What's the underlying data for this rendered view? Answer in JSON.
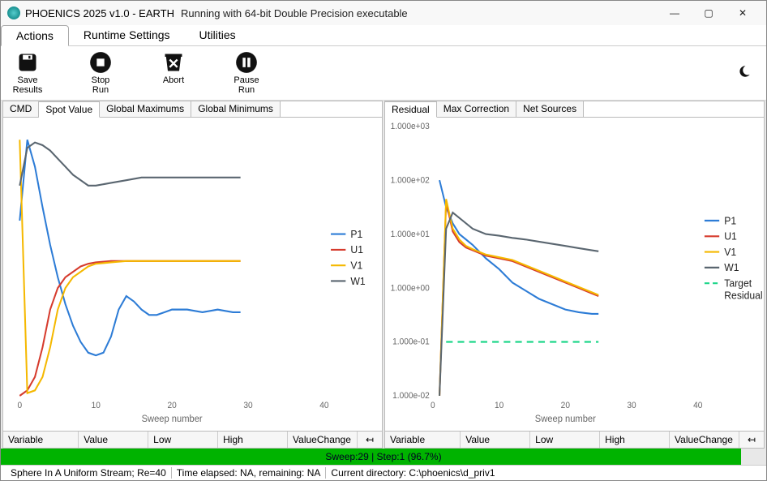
{
  "window": {
    "title": "PHOENICS 2025 v1.0 - EARTH",
    "subtitle": "Running with 64-bit Double Precision executable"
  },
  "menu": {
    "tabs": [
      "Actions",
      "Runtime Settings",
      "Utilities"
    ],
    "active": 0
  },
  "toolbar": {
    "buttons": [
      {
        "id": "save-results",
        "label": "Save\nResults",
        "icon": "save"
      },
      {
        "id": "stop-run",
        "label": "Stop\nRun",
        "icon": "stop"
      },
      {
        "id": "abort",
        "label": "Abort",
        "icon": "trash"
      },
      {
        "id": "pause-run",
        "label": "Pause\nRun",
        "icon": "pause"
      }
    ]
  },
  "left_panel": {
    "tabs": [
      "CMD",
      "Spot Value",
      "Global Maximums",
      "Global Minimums"
    ],
    "active": 1,
    "chart": {
      "type": "line",
      "xlabel": "Sweep number",
      "xlim": [
        0,
        40
      ],
      "xticks": [
        0,
        10,
        20,
        30,
        40
      ],
      "ylim": [
        0,
        100
      ],
      "background_color": "#ffffff",
      "series": [
        {
          "name": "P1",
          "color": "#2d7cd6",
          "x": [
            0,
            1,
            2,
            3,
            4,
            5,
            6,
            7,
            8,
            9,
            10,
            11,
            12,
            13,
            14,
            15,
            16,
            17,
            18,
            19,
            20,
            22,
            24,
            26,
            28,
            29
          ],
          "y": [
            65,
            95,
            85,
            70,
            56,
            44,
            34,
            26,
            20,
            16,
            15,
            16,
            22,
            32,
            37,
            35,
            32,
            30,
            30,
            31,
            32,
            32,
            31,
            32,
            31,
            31
          ]
        },
        {
          "name": "U1",
          "color": "#d63b2d",
          "x": [
            0,
            1,
            2,
            3,
            4,
            5,
            6,
            7,
            8,
            9,
            10,
            12,
            14,
            16,
            18,
            20,
            22,
            24,
            26,
            28,
            29
          ],
          "y": [
            0,
            2,
            7,
            18,
            32,
            40,
            44,
            46,
            48,
            49,
            49.5,
            50,
            50,
            50,
            50,
            50,
            50,
            50,
            50,
            50,
            50
          ]
        },
        {
          "name": "V1",
          "color": "#f5b800",
          "x": [
            0,
            1,
            2,
            3,
            4,
            5,
            6,
            7,
            8,
            9,
            10,
            12,
            14,
            16,
            18,
            20,
            22,
            24,
            26,
            28,
            29
          ],
          "y": [
            95,
            1,
            2,
            7,
            18,
            32,
            40,
            44,
            46,
            48,
            49,
            49.5,
            50,
            50,
            50,
            50,
            50,
            50,
            50,
            50,
            50
          ]
        },
        {
          "name": "W1",
          "color": "#5a6670",
          "x": [
            0,
            1,
            2,
            3,
            4,
            5,
            6,
            7,
            8,
            9,
            10,
            12,
            14,
            16,
            18,
            20,
            22,
            24,
            26,
            28,
            29
          ],
          "y": [
            78,
            92,
            94,
            93,
            91,
            88,
            85,
            82,
            80,
            78,
            78,
            79,
            80,
            81,
            81,
            81,
            81,
            81,
            81,
            81,
            81
          ]
        }
      ],
      "legend": [
        "P1",
        "U1",
        "V1",
        "W1"
      ]
    },
    "table_headers": [
      "Variable",
      "Value",
      "Low",
      "High",
      "ValueChange"
    ]
  },
  "right_panel": {
    "tabs": [
      "Residual",
      "Max Correction",
      "Net Sources"
    ],
    "active": 0,
    "chart": {
      "type": "line-log",
      "xlabel": "Sweep number",
      "xlim": [
        0,
        40
      ],
      "xticks": [
        0,
        10,
        20,
        30,
        40
      ],
      "ylim": [
        -2,
        3
      ],
      "yticks": [
        -2,
        -1,
        0,
        1,
        2,
        3
      ],
      "ytick_labels": [
        "1.000e-02",
        "1.000e-01",
        "1.000e+00",
        "1.000e+01",
        "1.000e+02",
        "1.000e+03"
      ],
      "background_color": "#ffffff",
      "series": [
        {
          "name": "P1",
          "color": "#2d7cd6",
          "x": [
            1,
            2,
            3,
            4,
            5,
            6,
            8,
            10,
            12,
            14,
            16,
            18,
            20,
            22,
            24,
            25
          ],
          "y": [
            2.0,
            1.5,
            1.2,
            1.0,
            0.9,
            0.8,
            0.55,
            0.35,
            0.1,
            -0.05,
            -0.2,
            -0.3,
            -0.4,
            -0.45,
            -0.48,
            -0.48
          ]
        },
        {
          "name": "U1",
          "color": "#d63b2d",
          "x": [
            1,
            2,
            3,
            4,
            5,
            6,
            8,
            10,
            12,
            14,
            16,
            18,
            20,
            22,
            24,
            25
          ],
          "y": [
            -2,
            1.6,
            1.05,
            0.85,
            0.75,
            0.7,
            0.6,
            0.55,
            0.5,
            0.4,
            0.3,
            0.2,
            0.1,
            0.0,
            -0.1,
            -0.15
          ]
        },
        {
          "name": "V1",
          "color": "#f5b800",
          "x": [
            1,
            2,
            3,
            4,
            5,
            6,
            8,
            10,
            12,
            14,
            16,
            18,
            20,
            22,
            24,
            25
          ],
          "y": [
            -2,
            1.65,
            1.1,
            0.9,
            0.78,
            0.72,
            0.62,
            0.57,
            0.52,
            0.42,
            0.32,
            0.22,
            0.12,
            0.02,
            -0.08,
            -0.13
          ]
        },
        {
          "name": "W1",
          "color": "#5a6670",
          "x": [
            1,
            2,
            3,
            4,
            5,
            6,
            8,
            10,
            12,
            14,
            16,
            18,
            20,
            22,
            24,
            25
          ],
          "y": [
            -2,
            1.1,
            1.4,
            1.3,
            1.2,
            1.1,
            1.0,
            0.97,
            0.93,
            0.9,
            0.86,
            0.82,
            0.78,
            0.74,
            0.7,
            0.68
          ]
        },
        {
          "name": "Target Residual",
          "color": "#1fd68a",
          "dash": true,
          "x": [
            2,
            25
          ],
          "y": [
            -1,
            -1
          ]
        }
      ],
      "legend": [
        "P1",
        "U1",
        "V1",
        "W1",
        "Target Residual"
      ]
    },
    "table_headers": [
      "Variable",
      "Value",
      "Low",
      "High",
      "ValueChange"
    ]
  },
  "progress": {
    "text": "Sweep:29 | Step:1  (96.7%)",
    "percent": 96.7
  },
  "status": {
    "segments": [
      "Sphere In A Uniform Stream; Re=40",
      "Time elapsed: NA, remaining: NA",
      "Current directory:  C:\\phoenics\\d_priv1"
    ]
  }
}
